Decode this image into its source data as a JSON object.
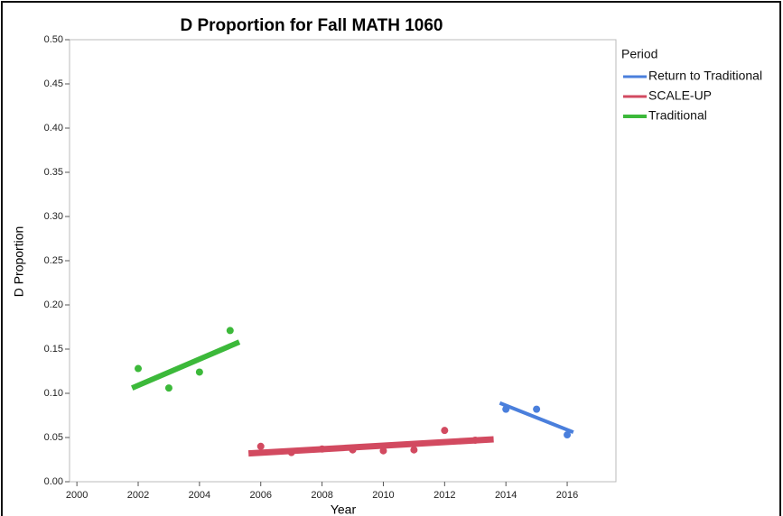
{
  "chart_data": {
    "type": "scatter",
    "title": "D Proportion for Fall MATH 1060",
    "x_label": "Year",
    "y_label": "D Proportion",
    "legend_title": "Period",
    "legend_position": "right",
    "xlim": [
      1999.76,
      2017.59
    ],
    "ylim": [
      0,
      0.5
    ],
    "xticks": [
      2000,
      2002,
      2004,
      2006,
      2008,
      2010,
      2012,
      2014,
      2016
    ],
    "yticks": [
      {
        "value": 0,
        "label": "0.00"
      },
      {
        "value": 0.05,
        "label": "0.05"
      },
      {
        "value": 0.1,
        "label": "0.10"
      },
      {
        "value": 0.15,
        "label": "0.15"
      },
      {
        "value": 0.2,
        "label": "0.20"
      },
      {
        "value": 0.25,
        "label": "0.25"
      },
      {
        "value": 0.3,
        "label": "0.30"
      },
      {
        "value": 0.35,
        "label": "0.35"
      },
      {
        "value": 0.4,
        "label": "0.40"
      },
      {
        "value": 0.45,
        "label": "0.45"
      },
      {
        "value": 0.5,
        "label": "0.50"
      }
    ],
    "series": [
      {
        "name": "Return to Traditional",
        "color": "#4a7fdc",
        "x": [
          2014,
          2015,
          2016
        ],
        "values": [
          0.082,
          0.082,
          0.053
        ],
        "fit_x": [
          2013.8,
          2016.2
        ],
        "fit_values": [
          0.089,
          0.056
        ]
      },
      {
        "name": "SCALE-UP",
        "color": "#d24a60",
        "x": [
          2006,
          2007,
          2008,
          2009,
          2010,
          2011,
          2012,
          2013
        ],
        "values": [
          0.04,
          0.033,
          0.037,
          0.036,
          0.035,
          0.036,
          0.058,
          0.047
        ],
        "fit_x": [
          2005.6,
          2013.6
        ],
        "fit_values": [
          0.032,
          0.048
        ]
      },
      {
        "name": "Traditional",
        "color": "#3cb93a",
        "x": [
          2002,
          2003,
          2004,
          2005
        ],
        "values": [
          0.128,
          0.106,
          0.124,
          0.171
        ],
        "fit_x": [
          2001.8,
          2005.3
        ],
        "fit_values": [
          0.106,
          0.158
        ]
      }
    ]
  }
}
